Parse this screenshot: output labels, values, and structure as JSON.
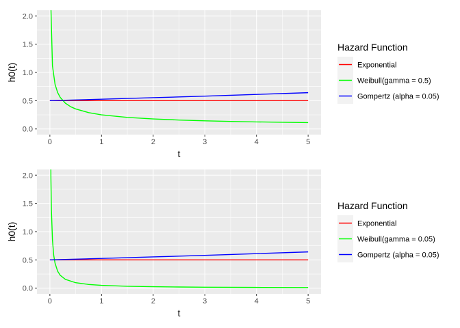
{
  "chart_data": [
    {
      "type": "line",
      "xlabel": "t",
      "ylabel": "h0(t)",
      "xlim": [
        -0.25,
        5.25
      ],
      "ylim": [
        -0.1,
        2.1
      ],
      "x_ticks": [
        0,
        1,
        2,
        3,
        4,
        5
      ],
      "x_tick_labels": [
        "0",
        "1",
        "2",
        "3",
        "4",
        "5"
      ],
      "y_ticks": [
        0.0,
        0.5,
        1.0,
        1.5,
        2.0
      ],
      "y_tick_labels": [
        "0.0",
        "0.5",
        "1.0",
        "1.5",
        "2.0"
      ],
      "grid": true,
      "legend": {
        "title": "Hazard Function",
        "position": "right",
        "entries": [
          "Exponential",
          "Weibull(gamma = 0.5)",
          "Gompertz (alpha = 0.05)"
        ]
      },
      "series": [
        {
          "name": "Exponential",
          "color": "#ff0000",
          "x": [
            0,
            5
          ],
          "y": [
            0.5,
            0.5
          ]
        },
        {
          "name": "Weibull(gamma = 0.5)",
          "color": "#00ff00",
          "x": [
            0.01,
            0.05,
            0.1,
            0.15,
            0.2,
            0.3,
            0.4,
            0.5,
            0.75,
            1,
            1.5,
            2,
            2.5,
            3,
            3.5,
            4,
            4.5,
            5
          ],
          "y": [
            2.5,
            1.118,
            0.791,
            0.645,
            0.559,
            0.456,
            0.395,
            0.354,
            0.289,
            0.25,
            0.204,
            0.177,
            0.158,
            0.144,
            0.134,
            0.125,
            0.118,
            0.112
          ]
        },
        {
          "name": "Gompertz (alpha = 0.05)",
          "color": "#0000ff",
          "x": [
            0,
            1,
            2,
            3,
            4,
            5
          ],
          "y": [
            0.5,
            0.526,
            0.553,
            0.581,
            0.611,
            0.642
          ]
        }
      ]
    },
    {
      "type": "line",
      "xlabel": "t",
      "ylabel": "h0(t)",
      "xlim": [
        -0.25,
        5.25
      ],
      "ylim": [
        -0.1,
        2.1
      ],
      "x_ticks": [
        0,
        1,
        2,
        3,
        4,
        5
      ],
      "x_tick_labels": [
        "0",
        "1",
        "2",
        "3",
        "4",
        "5"
      ],
      "y_ticks": [
        0.0,
        0.5,
        1.0,
        1.5,
        2.0
      ],
      "y_tick_labels": [
        "0.0",
        "0.5",
        "1.0",
        "1.5",
        "2.0"
      ],
      "grid": true,
      "legend": {
        "title": "Hazard Function",
        "position": "right",
        "entries": [
          "Exponential",
          "Weibull(gamma = 0.05)",
          "Gompertz (alpha = 0.05)"
        ]
      },
      "series": [
        {
          "name": "Exponential",
          "color": "#ff0000",
          "x": [
            0,
            5
          ],
          "y": [
            0.5,
            0.5
          ]
        },
        {
          "name": "Weibull(gamma = 0.05)",
          "color": "#00ff00",
          "x": [
            0.01,
            0.02,
            0.03,
            0.05,
            0.075,
            0.1,
            0.15,
            0.2,
            0.3,
            0.5,
            0.75,
            1,
            1.5,
            2,
            2.5,
            3,
            4,
            5
          ],
          "y": [
            3.5,
            1.943,
            1.377,
            0.852,
            0.578,
            0.4425,
            0.301,
            0.2287,
            0.1556,
            0.0966,
            0.0657,
            0.05,
            0.034,
            0.0259,
            0.0209,
            0.0176,
            0.0134,
            0.0108
          ]
        },
        {
          "name": "Gompertz (alpha = 0.05)",
          "color": "#0000ff",
          "x": [
            0,
            1,
            2,
            3,
            4,
            5
          ],
          "y": [
            0.5,
            0.526,
            0.553,
            0.581,
            0.611,
            0.642
          ]
        }
      ]
    }
  ]
}
